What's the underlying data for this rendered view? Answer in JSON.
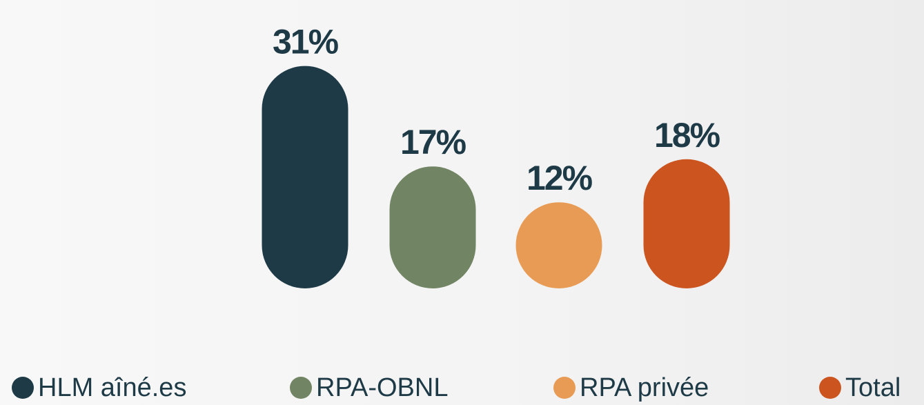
{
  "chart_data": {
    "type": "bar",
    "categories": [
      "HLM aîné.es",
      "RPA-OBNL",
      "RPA privée",
      "Total"
    ],
    "values": [
      31,
      17,
      12,
      18
    ],
    "value_labels": [
      "31%",
      "17%",
      "12%",
      "18%"
    ],
    "colors": [
      "#1d3a46",
      "#718463",
      "#e89b55",
      "#cc541e"
    ]
  }
}
